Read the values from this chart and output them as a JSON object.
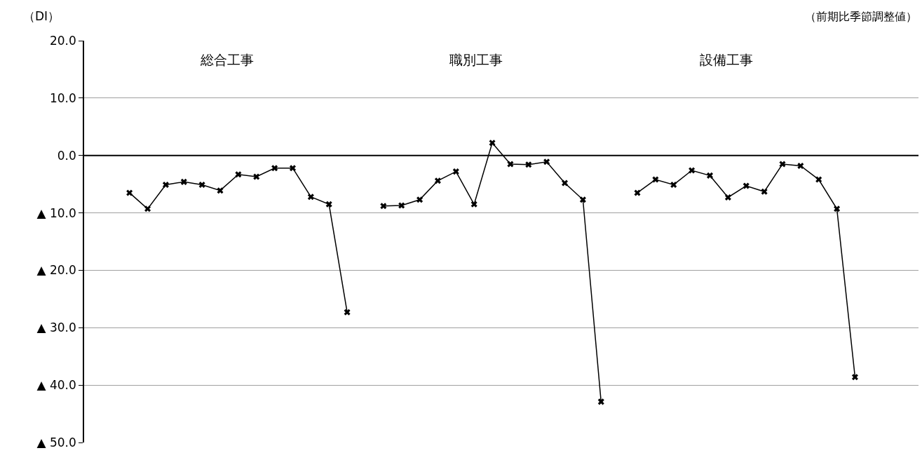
{
  "chart_data": {
    "type": "line",
    "ylabel": "（DI）",
    "annotations": [
      "（前期比季節調整値）",
      "総合工事",
      "職別工事",
      "設備工事"
    ],
    "categories": [
      null,
      null,
      null,
      null,
      null,
      null,
      null,
      null,
      null,
      null,
      null,
      null,
      null,
      null,
      null,
      null,
      null,
      null,
      null,
      null,
      null,
      null,
      null,
      null,
      null,
      null,
      null,
      null,
      null,
      null,
      null,
      null,
      null,
      null,
      null,
      null,
      null,
      null,
      null,
      null,
      null,
      null,
      null,
      null,
      null,
      null
    ],
    "series": [
      {
        "color": "#000000",
        "values": [
          null,
          null,
          -6.5,
          -9.3,
          -5.1,
          -4.6,
          -5.1,
          -6.1,
          -3.3,
          -3.7,
          -2.2,
          -2.2,
          -7.2,
          -8.5,
          -27.3,
          null,
          -8.8,
          -8.7,
          -7.7,
          -4.4,
          -2.8,
          -8.5,
          2.2,
          -1.5,
          -1.6,
          -1.1,
          -4.8,
          -7.7,
          -42.9,
          null,
          -6.5,
          -4.2,
          -5.1,
          -2.6,
          -3.5,
          -7.3,
          -5.3,
          -6.3,
          -1.5,
          -1.8,
          -4.2,
          -9.3,
          -38.6,
          null,
          null,
          null
        ]
      }
    ],
    "ylim": [
      -50,
      20
    ],
    "yticks": [
      {
        "value": 20,
        "label": "20.0"
      },
      {
        "value": 10,
        "label": "10.0"
      },
      {
        "value": 0,
        "label": "0.0"
      },
      {
        "value": -10,
        "label": "▲ 10.0"
      },
      {
        "value": -20,
        "label": "▲ 20.0"
      },
      {
        "value": -30,
        "label": "▲ 30.0"
      },
      {
        "value": -40,
        "label": "▲ 40.0"
      },
      {
        "value": -50,
        "label": "▲ 50.0"
      }
    ],
    "ref_lines": [
      {
        "axis": "y",
        "value": 0,
        "color": "#000000"
      }
    ],
    "grid": "y",
    "marker": "cross",
    "line_style": "solid",
    "tick_labels": "y"
  }
}
